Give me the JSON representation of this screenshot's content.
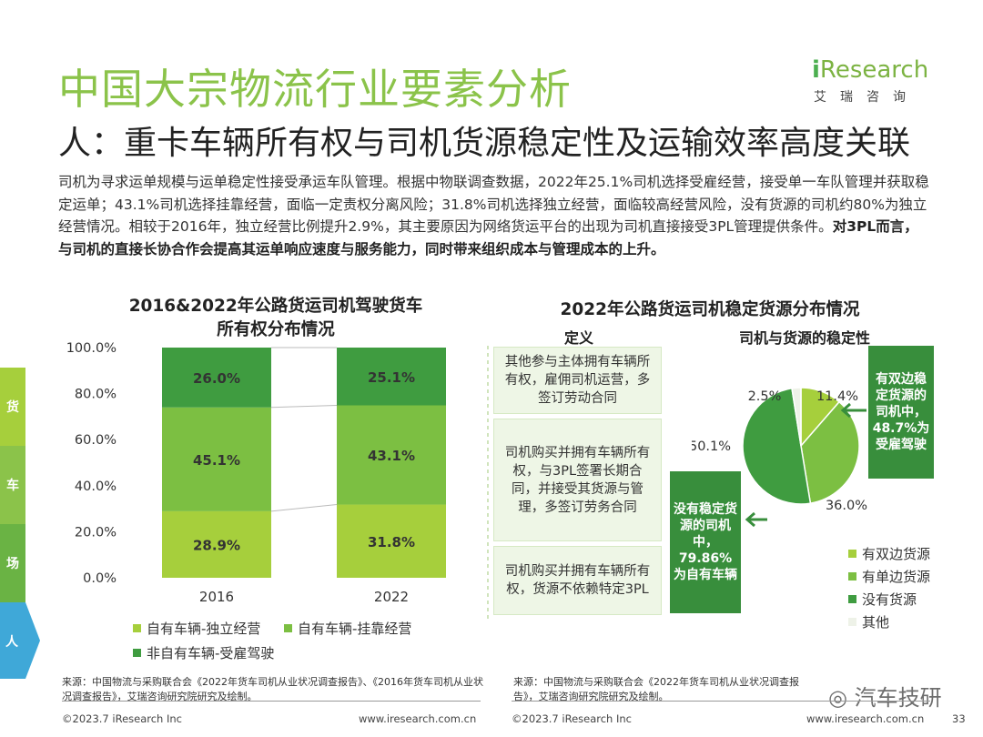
{
  "header": {
    "title": "中国大宗物流行业要素分析",
    "subtitle": "人：重卡车辆所有权与司机货源稳定性及运输效率高度关联"
  },
  "logo": {
    "brand_i": "i",
    "brand_rest": "Research",
    "sub": "艾瑞咨询"
  },
  "intro": {
    "text": "司机为寻求运单规模与运单稳定性接受承运车队管理。根据中物联调查数据，2022年25.1%司机选择受雇经营，接受单一车队管理并获取稳定运单；43.1%司机选择挂靠经营，面临一定责权分离风险；31.8%司机选择独立经营，面临较高经营风险，没有货源的司机约80%为独立经营情况。相较于2016年，独立经营比例提升2.9%，其主要原因为网络货运平台的出现为司机直接接受3PL管理提供条件。",
    "bold": "对3PL而言，与司机的直接长协合作会提高其运单响应速度与服务能力，同时带来组织成本与管理成本的上升。"
  },
  "side_nav": [
    "货",
    "车",
    "场",
    "人"
  ],
  "left_chart": {
    "title_line1": "2016&2022年公路货运司机驾驶货车",
    "title_line2": "所有权分布情况"
  },
  "chart_data": [
    {
      "type": "bar",
      "stacked": true,
      "categories": [
        "2016",
        "2022"
      ],
      "series": [
        {
          "name": "自有车辆-独立经营",
          "values": [
            28.9,
            31.8
          ],
          "labels": [
            "28.9%",
            "31.8%"
          ],
          "color": "#a6cf3c"
        },
        {
          "name": "自有车辆-挂靠经营",
          "values": [
            45.1,
            43.1
          ],
          "labels": [
            "45.1%",
            "43.1%"
          ],
          "color": "#7cbf42"
        },
        {
          "name": "非自有车辆-受雇驾驶",
          "values": [
            26.0,
            25.1
          ],
          "labels": [
            "26.0%",
            "25.1%"
          ],
          "color": "#3f9c40"
        }
      ],
      "ylim": [
        0,
        100
      ],
      "yticks": [
        "0.0%",
        "20.0%",
        "40.0%",
        "60.0%",
        "80.0%",
        "100.0%"
      ],
      "title": "2016&2022年公路货运司机驾驶货车所有权分布情况"
    },
    {
      "type": "pie",
      "title": "2022年公路货运司机稳定货源分布情况",
      "categories": [
        "有双边货源",
        "有单边货源",
        "没有货源",
        "其他"
      ],
      "values": [
        11.4,
        36.0,
        50.1,
        2.5
      ],
      "labels": [
        "11.4%",
        "36.0%",
        "50.1%",
        "2.5%"
      ],
      "colors": [
        "#a6cf3c",
        "#7cbf42",
        "#3f9c40",
        "#eef2e8"
      ]
    }
  ],
  "right_panel": {
    "title": "2022年公路货运司机稳定货源分布情况",
    "def_header": "定义",
    "pie_header": "司机与货源的稳定性",
    "definitions": [
      "其他参与主体拥有车辆所有权，雇佣司机运营，多签订劳动合同",
      "司机购买并拥有车辆所有权，与3PL签署长期合同，并接受其货源与管理，多签订劳务合同",
      "司机购买并拥有车辆所有权，货源不依赖特定3PL"
    ],
    "callout_top": "有双边稳定货源的司机中，48.7%为受雇驾驶",
    "callout_bottom": "没有稳定货源的司机中，79.86%为自有车辆"
  },
  "sources": {
    "left": "来源：中国物流与采购联合会《2022年货车司机从业状况调查报告》、《2016年货车司机从业状况调查报告》，艾瑞咨询研究院研究及绘制。",
    "right": "来源：中国物流与采购联合会《2022年货车司机从业状况调查报告》，艾瑞咨询研究院研究及绘制。"
  },
  "footer": {
    "copyright": "©2023.7 iResearch Inc",
    "url": "www.iresearch.com.cn",
    "page": "33",
    "watermark": "汽车技研"
  }
}
